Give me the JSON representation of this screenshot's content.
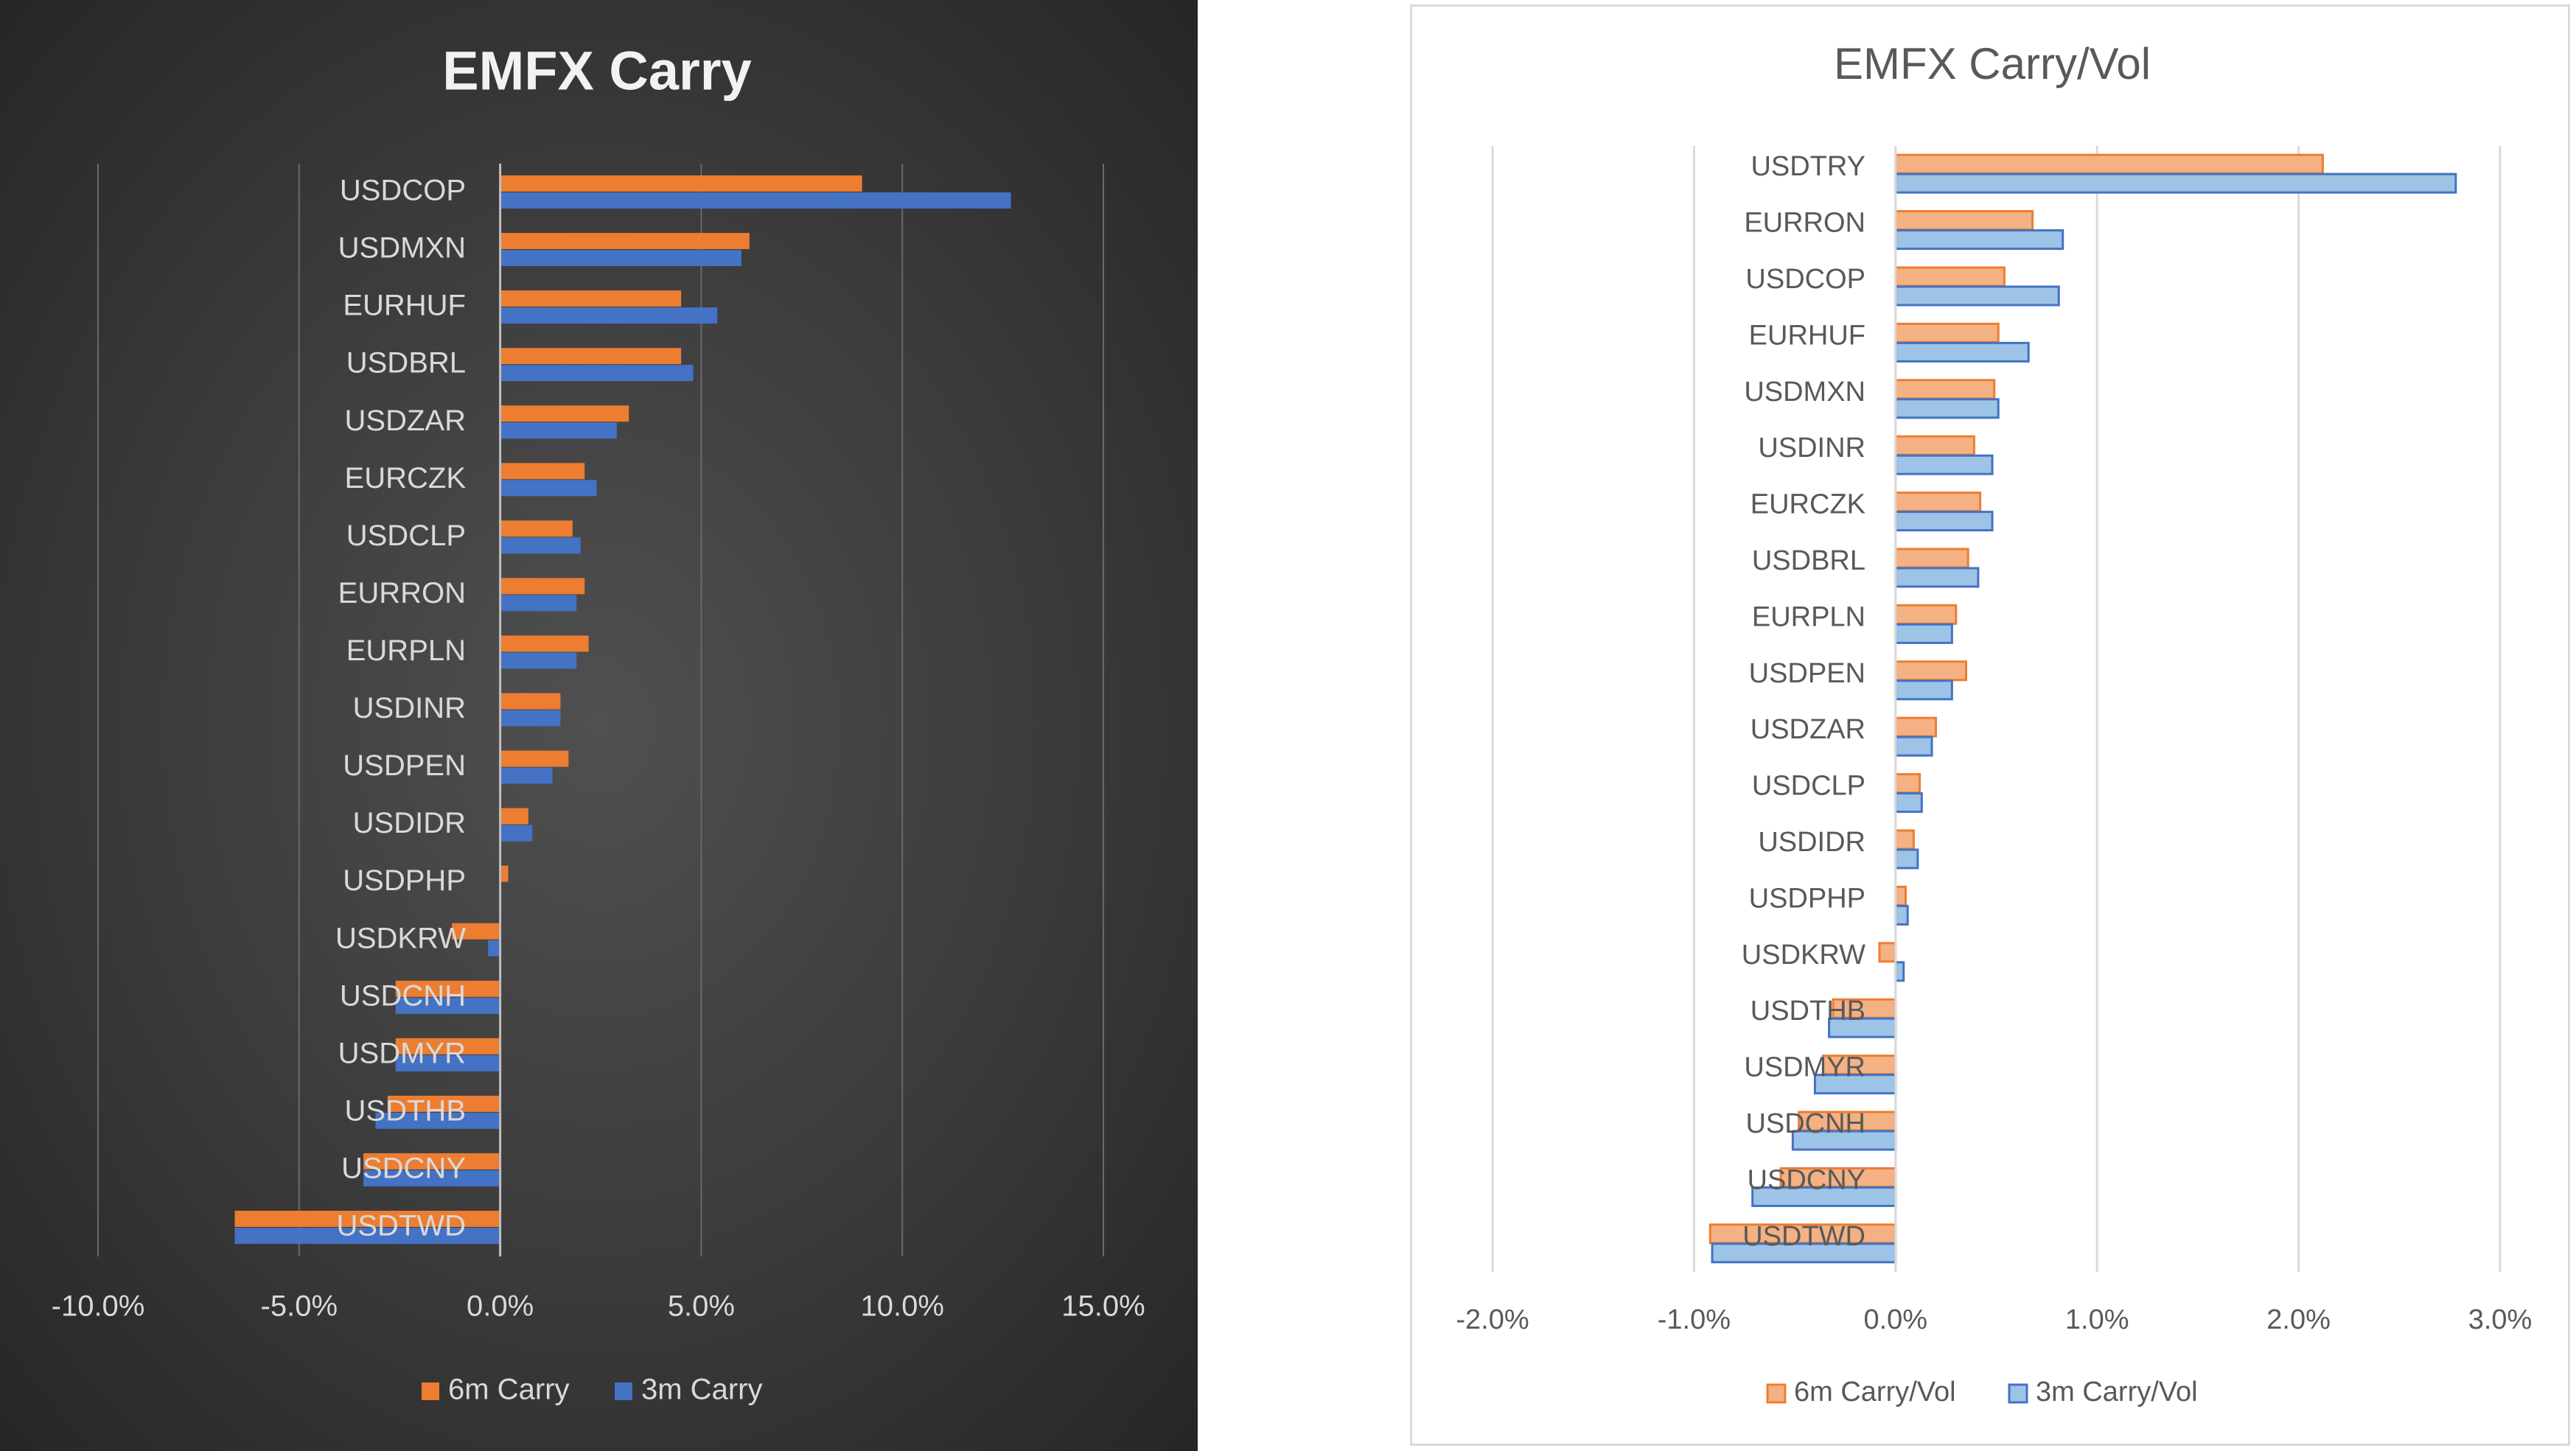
{
  "chart_data": [
    {
      "type": "bar",
      "orientation": "horizontal",
      "title": "EMFX Carry",
      "categories": [
        "USDCOP",
        "USDMXN",
        "EURHUF",
        "USDBRL",
        "USDZAR",
        "EURCZK",
        "USDCLP",
        "EURRON",
        "EURPLN",
        "USDINR",
        "USDPEN",
        "USDIDR",
        "USDPHP",
        "USDKRW",
        "USDCNH",
        "USDMYR",
        "USDTHB",
        "USDCNY",
        "USDTWD"
      ],
      "series": [
        {
          "name": "6m Carry",
          "color": "#ed7d31",
          "values": [
            9.0,
            6.2,
            4.5,
            4.5,
            3.2,
            2.1,
            1.8,
            2.1,
            2.2,
            1.5,
            1.7,
            0.7,
            0.2,
            -1.2,
            -2.6,
            -2.6,
            -2.8,
            -3.4,
            -6.6
          ]
        },
        {
          "name": "3m Carry",
          "color": "#4472c4",
          "values": [
            12.7,
            6.0,
            5.4,
            4.8,
            2.9,
            2.4,
            2.0,
            1.9,
            1.9,
            1.5,
            1.3,
            0.8,
            0.0,
            -0.3,
            -2.6,
            -2.6,
            -3.1,
            -3.4,
            -6.6
          ]
        }
      ],
      "xlim": [
        -10,
        15
      ],
      "ticks": [
        "-10.0%",
        "-5.0%",
        "0.0%",
        "5.0%",
        "10.0%",
        "15.0%"
      ],
      "grid": true,
      "legend": "bottom"
    },
    {
      "type": "bar",
      "orientation": "horizontal",
      "title": "EMFX Carry/Vol",
      "categories": [
        "USDTRY",
        "EURRON",
        "USDCOP",
        "EURHUF",
        "USDMXN",
        "USDINR",
        "EURCZK",
        "USDBRL",
        "EURPLN",
        "USDPEN",
        "USDZAR",
        "USDCLP",
        "USDIDR",
        "USDPHP",
        "USDKRW",
        "USDTHB",
        "USDMYR",
        "USDCNH",
        "USDCNY",
        "USDTWD"
      ],
      "series": [
        {
          "name": "6m Carry/Vol",
          "color": "#f4b183",
          "edge": "#ed7d31",
          "values": [
            2.12,
            0.68,
            0.54,
            0.51,
            0.49,
            0.39,
            0.42,
            0.36,
            0.3,
            0.35,
            0.2,
            0.12,
            0.09,
            0.05,
            -0.08,
            -0.31,
            -0.36,
            -0.48,
            -0.57,
            -0.92
          ]
        },
        {
          "name": "3m Carry/Vol",
          "color": "#9dc3e6",
          "edge": "#4472c4",
          "values": [
            2.78,
            0.83,
            0.81,
            0.66,
            0.51,
            0.48,
            0.48,
            0.41,
            0.28,
            0.28,
            0.18,
            0.13,
            0.11,
            0.06,
            0.04,
            -0.33,
            -0.4,
            -0.51,
            -0.71,
            -0.91
          ]
        }
      ],
      "xlim": [
        -2,
        3
      ],
      "ticks": [
        "-2.0%",
        "-1.0%",
        "0.0%",
        "1.0%",
        "2.0%",
        "3.0%"
      ],
      "grid": true,
      "legend": "bottom"
    }
  ]
}
